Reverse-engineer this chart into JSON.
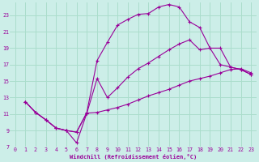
{
  "xlabel": "Windchill (Refroidissement éolien,°C)",
  "bg_color": "#cceee8",
  "grid_color": "#aaddcc",
  "line_color": "#990099",
  "marker": "+",
  "xlim": [
    -0.5,
    23.5
  ],
  "ylim": [
    7,
    24.5
  ],
  "xticks": [
    0,
    1,
    2,
    3,
    4,
    5,
    6,
    7,
    8,
    9,
    10,
    11,
    12,
    13,
    14,
    15,
    16,
    17,
    18,
    19,
    20,
    21,
    22,
    23
  ],
  "yticks": [
    7,
    9,
    11,
    13,
    15,
    17,
    19,
    21,
    23
  ],
  "line1_x": [
    1,
    2,
    3,
    4,
    5,
    6,
    7,
    8,
    9,
    10,
    11,
    12,
    13,
    14,
    15,
    16,
    17,
    18,
    19,
    20,
    21,
    22,
    23
  ],
  "line1_y": [
    12.5,
    11.2,
    10.3,
    9.3,
    9.0,
    8.8,
    11.2,
    17.5,
    19.7,
    21.8,
    22.5,
    23.1,
    23.2,
    24.0,
    24.3,
    24.0,
    22.2,
    21.5,
    19.0,
    17.0,
    16.7,
    16.4,
    15.8
  ],
  "line2_x": [
    1,
    2,
    3,
    4,
    5,
    6,
    7,
    8,
    9,
    10,
    11,
    12,
    13,
    14,
    15,
    16,
    17,
    18,
    19,
    20,
    21,
    22,
    23
  ],
  "line2_y": [
    12.5,
    11.2,
    10.3,
    9.3,
    9.0,
    7.5,
    11.1,
    15.3,
    13.0,
    14.2,
    15.5,
    16.5,
    17.2,
    18.0,
    18.8,
    19.5,
    20.0,
    18.8,
    19.0,
    19.0,
    16.7,
    16.4,
    15.8
  ],
  "line3_x": [
    1,
    2,
    3,
    4,
    5,
    6,
    7,
    8,
    9,
    10,
    11,
    12,
    13,
    14,
    15,
    16,
    17,
    18,
    19,
    20,
    21,
    22,
    23
  ],
  "line3_y": [
    12.5,
    11.2,
    10.3,
    9.3,
    9.0,
    8.8,
    11.1,
    11.2,
    11.5,
    11.8,
    12.2,
    12.7,
    13.2,
    13.6,
    14.0,
    14.5,
    15.0,
    15.3,
    15.6,
    16.0,
    16.4,
    16.5,
    16.0
  ]
}
